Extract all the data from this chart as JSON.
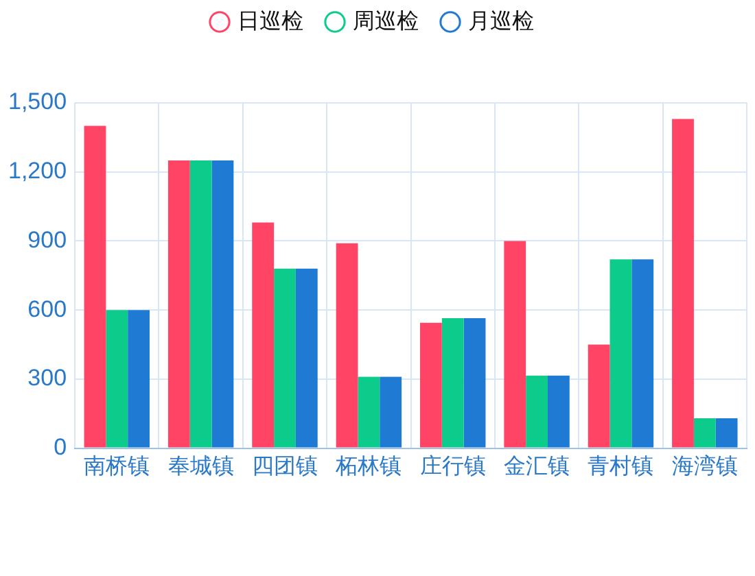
{
  "chart_data": {
    "type": "bar",
    "categories": [
      "南桥镇",
      "奉城镇",
      "四团镇",
      "柘林镇",
      "庄行镇",
      "金汇镇",
      "青村镇",
      "海湾镇"
    ],
    "series": [
      {
        "name": "日巡检",
        "color": "#ff4466",
        "values": [
          1400,
          1250,
          980,
          890,
          545,
          900,
          450,
          1430
        ]
      },
      {
        "name": "周巡检",
        "color": "#0ccb8b",
        "values": [
          600,
          1250,
          780,
          310,
          565,
          315,
          820,
          130
        ]
      },
      {
        "name": "月巡检",
        "color": "#1f7ad4",
        "values": [
          600,
          1250,
          780,
          310,
          565,
          315,
          820,
          130
        ]
      }
    ],
    "ylim": [
      0,
      1500
    ],
    "yticks": [
      0,
      300,
      600,
      900,
      {
        "value": 1200,
        "label": "1,200"
      },
      {
        "value": 1500,
        "label": "1,500"
      }
    ],
    "grid": true,
    "legend": "top"
  }
}
